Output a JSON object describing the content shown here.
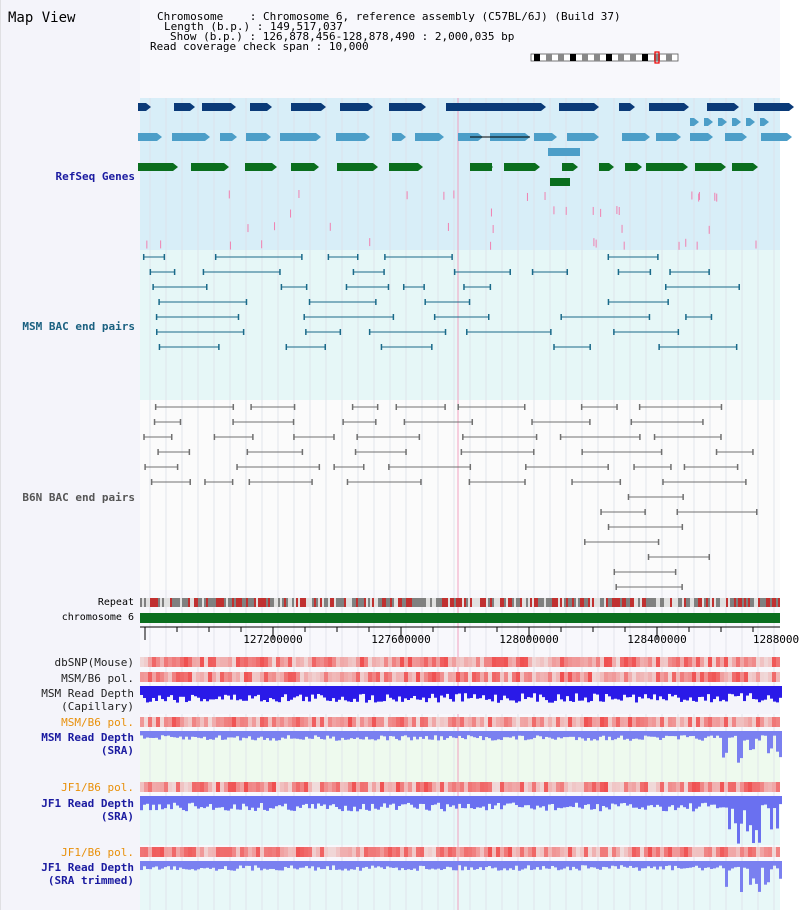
{
  "page": {
    "title": "Map View"
  },
  "info": {
    "chromosome_key": "Chromosome",
    "chromosome_val": "Chromosome 6, reference assembly (C57BL/6J) (Build 37)",
    "length_key": "Length (b.p.)",
    "length_val": "149,517,037",
    "show_key": "Show (b.p.)",
    "show_val": "126,878,456-128,878,490 : 2,000,035 bp",
    "coverage_key": "Read coverage check span",
    "coverage_val": "10,000"
  },
  "tracks": {
    "refseq": "RefSeq Genes",
    "msm_bac": "MSM BAC end pairs",
    "b6n_bac": "B6N BAC end pairs",
    "repeat": "Repeat",
    "chrom": "chromosome 6",
    "dbsnp": "dbSNP(Mouse)",
    "msm_pol": "MSM/B6 pol.",
    "msm_depth_cap_1": "MSM Read Depth",
    "msm_depth_cap_2": "(Capillary)",
    "msm_pol2": "MSM/B6 pol.",
    "msm_depth_sra_1": "MSM Read Depth",
    "msm_depth_sra_2": "(SRA)",
    "jf1_pol": "JF1/B6 pol.",
    "jf1_depth_1": "JF1 Read Depth",
    "jf1_depth_2": "(SRA)",
    "jf1_pol2": "JF1/B6 pol.",
    "jf1_trim_1": "JF1 Read Depth",
    "jf1_trim_2": "(SRA trimmed)"
  },
  "axis": {
    "ticks": [
      "127200000",
      "127600000",
      "128000000",
      "128400000",
      "1288000"
    ]
  },
  "colors": {
    "refseq_bg": "#d8eef8",
    "msm_bg": "#e6f7f7",
    "gene_dark": "#0a3a78",
    "gene_mid": "#4c9ec8",
    "gene_green": "#0a6e1e",
    "pink": "#f080b0",
    "bac_msm": "#1a6a8a",
    "bac_b6n": "#707070",
    "chrom": "#0a6e1e",
    "depth_blue": "#1a10e0",
    "label_blue": "#1a1aa0",
    "label_teal": "#1a6080",
    "label_orange": "#e8900a"
  }
}
